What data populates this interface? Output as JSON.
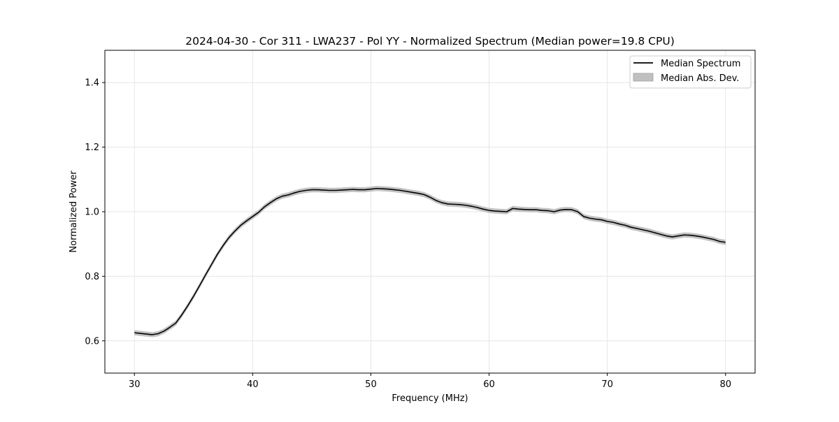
{
  "chart_data": {
    "type": "line",
    "title": "2024-04-30 - Cor 311 - LWA237 - Pol YY - Normalized Spectrum (Median power=19.8 CPU)",
    "xlabel": "Frequency (MHz)",
    "ylabel": "Normalized Power",
    "xlim": [
      27.5,
      82.5
    ],
    "ylim": [
      0.5,
      1.5
    ],
    "xticks": [
      30,
      40,
      50,
      60,
      70,
      80
    ],
    "xtick_labels": [
      "30",
      "40",
      "50",
      "60",
      "70",
      "80"
    ],
    "yticks": [
      0.6,
      0.8,
      1.0,
      1.2,
      1.4
    ],
    "ytick_labels": [
      "0.6",
      "0.8",
      "1.0",
      "1.2",
      "1.4"
    ],
    "grid": true,
    "legend_position": "upper-right",
    "legend": [
      "Median Spectrum",
      "Median Abs. Dev."
    ],
    "series": [
      {
        "name": "Median Spectrum",
        "color": "#000000",
        "x": [
          30,
          30.5,
          31,
          31.5,
          32,
          32.5,
          33,
          33.5,
          34,
          34.5,
          35,
          35.5,
          36,
          36.5,
          37,
          37.5,
          38,
          38.5,
          39,
          39.5,
          40,
          40.5,
          41,
          41.5,
          42,
          42.5,
          43,
          43.5,
          44,
          44.5,
          45,
          45.5,
          46,
          46.5,
          47,
          47.5,
          48,
          48.5,
          49,
          49.5,
          50,
          50.5,
          51,
          51.5,
          52,
          52.5,
          53,
          53.5,
          54,
          54.5,
          55,
          55.5,
          56,
          56.5,
          57,
          57.5,
          58,
          58.5,
          59,
          59.5,
          60,
          60.5,
          61,
          61.5,
          62,
          62.5,
          63,
          63.5,
          64,
          64.5,
          65,
          65.5,
          66,
          66.5,
          67,
          67.5,
          68,
          68.5,
          69,
          69.5,
          70,
          70.5,
          71,
          71.5,
          72,
          72.5,
          73,
          73.5,
          74,
          74.5,
          75,
          75.5,
          76,
          76.5,
          77,
          77.5,
          78,
          78.5,
          79,
          79.5,
          80
        ],
        "values": [
          0.625,
          0.623,
          0.621,
          0.619,
          0.622,
          0.63,
          0.642,
          0.655,
          0.68,
          0.708,
          0.738,
          0.77,
          0.803,
          0.835,
          0.867,
          0.895,
          0.92,
          0.94,
          0.958,
          0.972,
          0.985,
          0.998,
          1.015,
          1.028,
          1.04,
          1.048,
          1.052,
          1.058,
          1.063,
          1.066,
          1.068,
          1.068,
          1.067,
          1.066,
          1.066,
          1.067,
          1.068,
          1.069,
          1.068,
          1.068,
          1.07,
          1.072,
          1.071,
          1.07,
          1.068,
          1.066,
          1.063,
          1.06,
          1.057,
          1.053,
          1.045,
          1.035,
          1.028,
          1.024,
          1.023,
          1.022,
          1.02,
          1.017,
          1.013,
          1.008,
          1.004,
          1.002,
          1.001,
          1.0,
          1.01,
          1.008,
          1.007,
          1.006,
          1.006,
          1.004,
          1.003,
          1.0,
          1.005,
          1.007,
          1.006,
          1.0,
          0.985,
          0.98,
          0.977,
          0.975,
          0.97,
          0.967,
          0.962,
          0.958,
          0.952,
          0.948,
          0.944,
          0.94,
          0.935,
          0.93,
          0.925,
          0.922,
          0.925,
          0.928,
          0.927,
          0.925,
          0.922,
          0.918,
          0.914,
          0.908,
          0.905
        ]
      },
      {
        "name": "Median Abs. Dev.",
        "color": "#c0c0c0",
        "type": "band",
        "spread": 0.008
      }
    ]
  }
}
